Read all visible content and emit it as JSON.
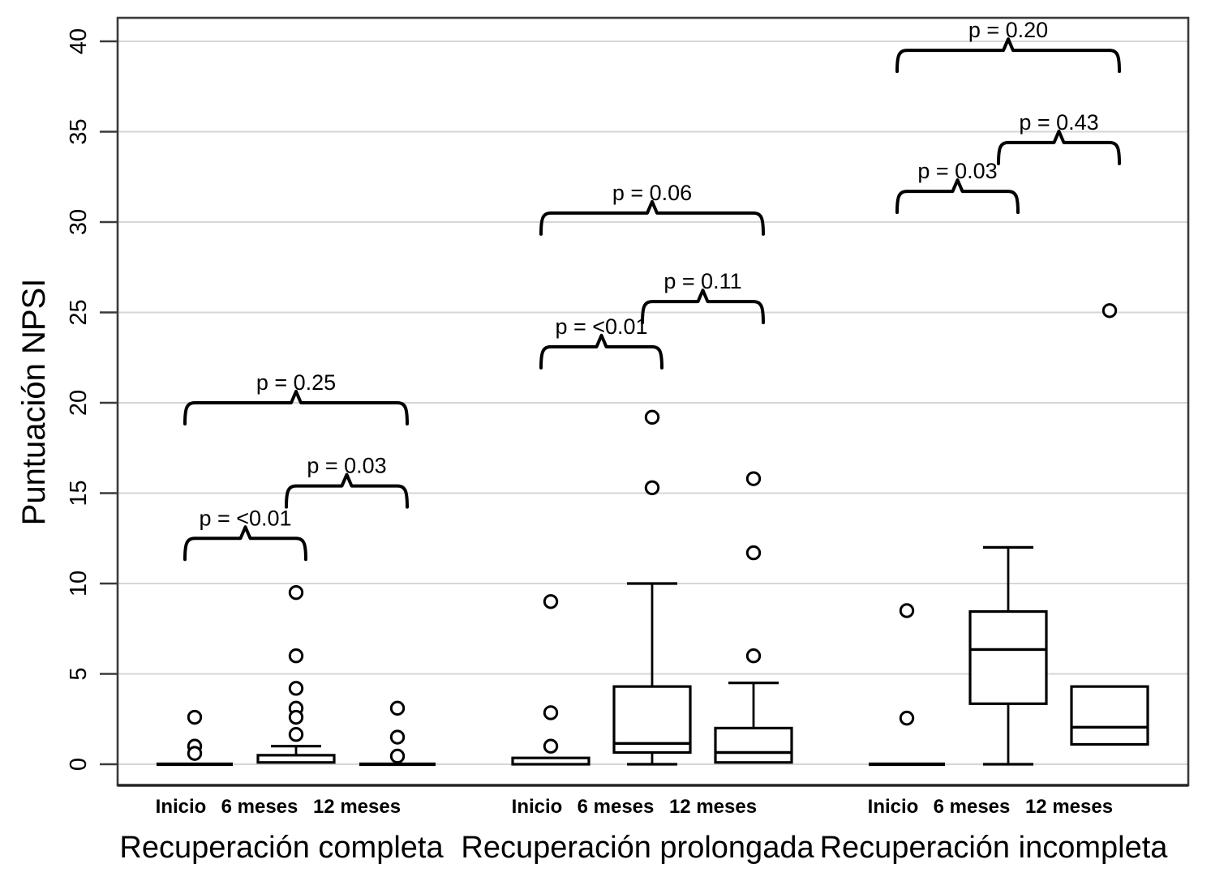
{
  "figure": {
    "ylabel": "Puntuación NPSI",
    "colors": {
      "stroke": "#000000",
      "gridline": "#d6d6d6",
      "frame": "#3a3a3a",
      "axis_line": "#262626",
      "text": "#000000",
      "background": "#ffffff"
    }
  },
  "chart_data": {
    "type": "boxplot",
    "title": "",
    "ylabel": "Puntuación NPSI",
    "xlabel": "",
    "ylim": [
      0,
      40
    ],
    "yticks": [
      0,
      5,
      10,
      15,
      20,
      25,
      30,
      35,
      40
    ],
    "grid": "horizontal",
    "legend": "none",
    "timepoint_labels": [
      "Inicio",
      "6 meses",
      "12 meses"
    ],
    "groups": [
      {
        "label": "Recuperación completa",
        "boxes": [
          {
            "timepoint": "Inicio",
            "style": "flat",
            "median": 0,
            "q1": 0,
            "q3": 0,
            "whisker_low": null,
            "whisker_high": null,
            "outliers": [
              2.6,
              1.0,
              0.6
            ]
          },
          {
            "timepoint": "6 meses",
            "style": "box",
            "median": null,
            "q1": 0.1,
            "q3": 0.5,
            "whisker_low": null,
            "whisker_high": 1.0,
            "outliers": [
              9.5,
              6.0,
              4.2,
              3.1,
              2.6,
              1.65
            ]
          },
          {
            "timepoint": "12 meses",
            "style": "flat",
            "median": 0,
            "q1": 0,
            "q3": 0,
            "whisker_low": null,
            "whisker_high": null,
            "outliers": [
              3.1,
              1.5,
              0.45
            ]
          }
        ],
        "comparisons": [
          {
            "label": "p = <0.01",
            "between": [
              0,
              1
            ],
            "bracket_y": 12.5
          },
          {
            "label": "p = 0.03",
            "between": [
              1,
              2
            ],
            "bracket_y": 15.4
          },
          {
            "label": "p = 0.25",
            "between": [
              0,
              2
            ],
            "bracket_y": 20.0
          }
        ]
      },
      {
        "label": "Recuperación prolongada",
        "boxes": [
          {
            "timepoint": "Inicio",
            "style": "box",
            "median": null,
            "q1": 0,
            "q3": 0.35,
            "whisker_low": null,
            "whisker_high": null,
            "outliers": [
              9.0,
              2.85,
              1.0
            ]
          },
          {
            "timepoint": "6 meses",
            "style": "box",
            "median": 1.15,
            "q1": 0.65,
            "q3": 4.3,
            "whisker_low": 0,
            "whisker_high": 10.0,
            "outliers": [
              19.2,
              15.3
            ]
          },
          {
            "timepoint": "12 meses",
            "style": "box",
            "median": 0.65,
            "q1": 0.1,
            "q3": 2.0,
            "whisker_low": null,
            "whisker_high": 4.5,
            "outliers": [
              15.8,
              11.7,
              6.0
            ]
          }
        ],
        "comparisons": [
          {
            "label": "p = <0.01",
            "between": [
              0,
              1
            ],
            "bracket_y": 23.1
          },
          {
            "label": "p = 0.11",
            "between": [
              1,
              2
            ],
            "bracket_y": 25.6
          },
          {
            "label": "p = 0.06",
            "between": [
              0,
              2
            ],
            "bracket_y": 30.5
          }
        ]
      },
      {
        "label": "Recuperación incompleta",
        "boxes": [
          {
            "timepoint": "Inicio",
            "style": "flat",
            "median": 0,
            "q1": 0,
            "q3": 0,
            "whisker_low": null,
            "whisker_high": null,
            "outliers": [
              8.5,
              2.55
            ]
          },
          {
            "timepoint": "6 meses",
            "style": "box",
            "median": 6.35,
            "q1": 3.35,
            "q3": 8.45,
            "whisker_low": 0,
            "whisker_high": 12.0,
            "outliers": []
          },
          {
            "timepoint": "12 meses",
            "style": "box",
            "median": 2.05,
            "q1": 1.1,
            "q3": 4.3,
            "whisker_low": null,
            "whisker_high": null,
            "outliers": [
              25.1
            ]
          }
        ],
        "comparisons": [
          {
            "label": "p = 0.03",
            "between": [
              0,
              1
            ],
            "bracket_y": 31.7
          },
          {
            "label": "p = 0.43",
            "between": [
              1,
              2
            ],
            "bracket_y": 34.4
          },
          {
            "label": "p = 0.20",
            "between": [
              0,
              2
            ],
            "bracket_y": 39.5
          }
        ]
      }
    ]
  }
}
